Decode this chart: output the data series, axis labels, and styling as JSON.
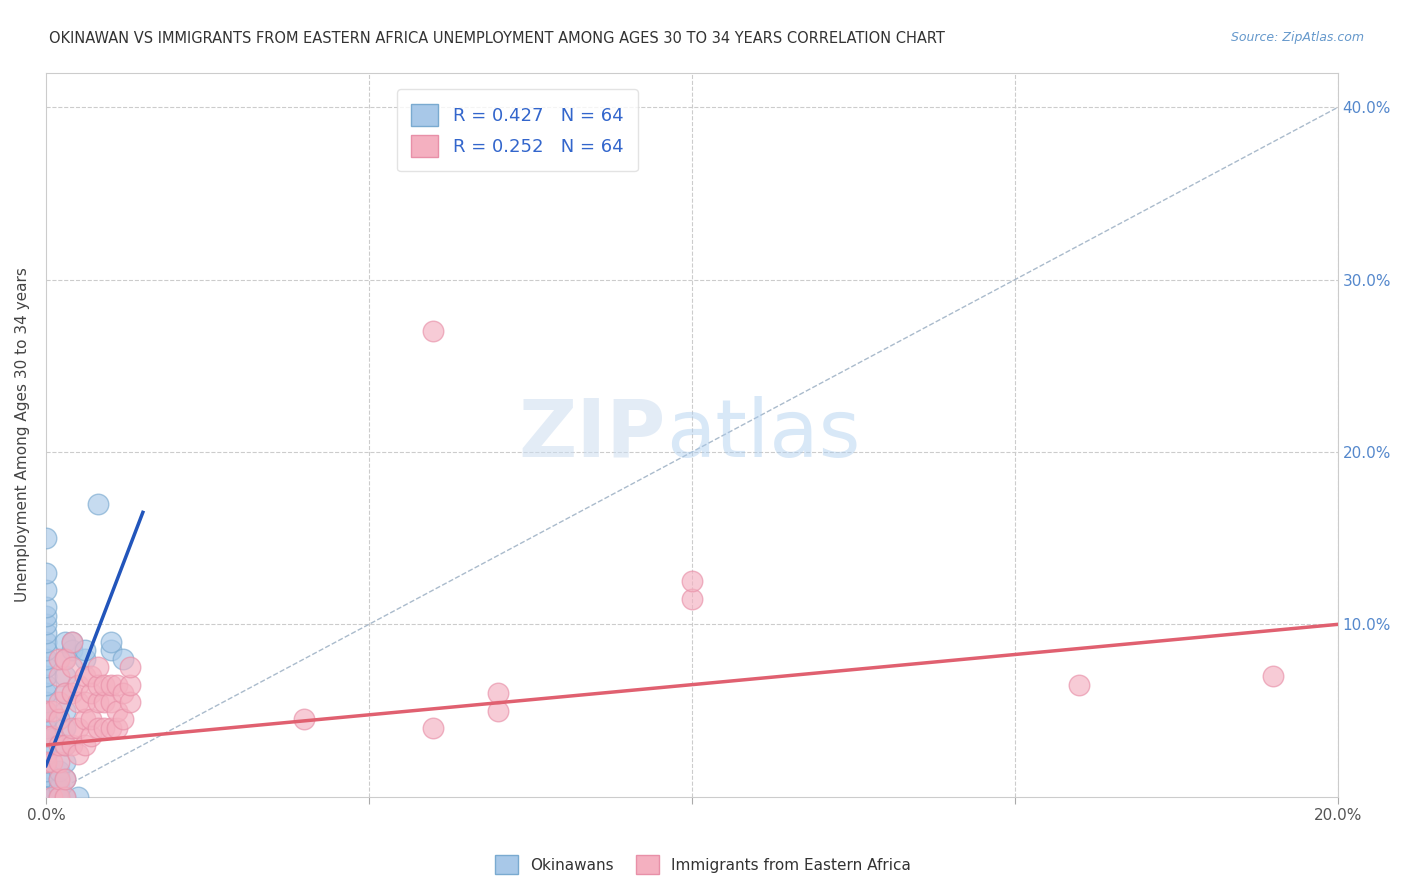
{
  "title": "OKINAWAN VS IMMIGRANTS FROM EASTERN AFRICA UNEMPLOYMENT AMONG AGES 30 TO 34 YEARS CORRELATION CHART",
  "source": "Source: ZipAtlas.com",
  "ylabel": "Unemployment Among Ages 30 to 34 years",
  "xlim": [
    0.0,
    0.2
  ],
  "ylim": [
    0.0,
    0.42
  ],
  "xticks": [
    0.0,
    0.05,
    0.1,
    0.15,
    0.2
  ],
  "yticks": [
    0.0,
    0.1,
    0.2,
    0.3,
    0.4
  ],
  "xticklabels": [
    "0.0%",
    "",
    "",
    "",
    "20.0%"
  ],
  "yticklabels": [
    "",
    "10.0%",
    "20.0%",
    "30.0%",
    "40.0%"
  ],
  "legend1_label": "R = 0.427   N = 64",
  "legend2_label": "R = 0.252   N = 64",
  "blue_color": "#a8c8e8",
  "pink_color": "#f4b0c0",
  "blue_edge_color": "#7aaad0",
  "pink_edge_color": "#e890a8",
  "blue_line_color": "#2255bb",
  "pink_line_color": "#e06070",
  "ref_line_color": "#aabbcc",
  "blue_scatter": [
    [
      0.0,
      0.0
    ],
    [
      0.0,
      0.0
    ],
    [
      0.0,
      0.0
    ],
    [
      0.0,
      0.0
    ],
    [
      0.0,
      0.0
    ],
    [
      0.0,
      0.0
    ],
    [
      0.0,
      0.0
    ],
    [
      0.0,
      0.0
    ],
    [
      0.0,
      0.0
    ],
    [
      0.0,
      0.0
    ],
    [
      0.0,
      0.005
    ],
    [
      0.0,
      0.01
    ],
    [
      0.0,
      0.01
    ],
    [
      0.0,
      0.015
    ],
    [
      0.0,
      0.02
    ],
    [
      0.0,
      0.02
    ],
    [
      0.0,
      0.025
    ],
    [
      0.0,
      0.03
    ],
    [
      0.0,
      0.035
    ],
    [
      0.0,
      0.04
    ],
    [
      0.0,
      0.045
    ],
    [
      0.0,
      0.05
    ],
    [
      0.0,
      0.055
    ],
    [
      0.0,
      0.06
    ],
    [
      0.0,
      0.065
    ],
    [
      0.0,
      0.07
    ],
    [
      0.0,
      0.075
    ],
    [
      0.0,
      0.08
    ],
    [
      0.0,
      0.085
    ],
    [
      0.0,
      0.09
    ],
    [
      0.0,
      0.095
    ],
    [
      0.0,
      0.1
    ],
    [
      0.0,
      0.105
    ],
    [
      0.0,
      0.11
    ],
    [
      0.0,
      0.12
    ],
    [
      0.0,
      0.13
    ],
    [
      0.0,
      0.15
    ],
    [
      0.0,
      0.0
    ],
    [
      0.0,
      0.0
    ],
    [
      0.0,
      0.0
    ],
    [
      0.002,
      0.0
    ],
    [
      0.002,
      0.005
    ],
    [
      0.002,
      0.01
    ],
    [
      0.002,
      0.015
    ],
    [
      0.002,
      0.0
    ],
    [
      0.003,
      0.0
    ],
    [
      0.003,
      0.01
    ],
    [
      0.003,
      0.02
    ],
    [
      0.003,
      0.03
    ],
    [
      0.003,
      0.04
    ],
    [
      0.003,
      0.05
    ],
    [
      0.003,
      0.06
    ],
    [
      0.003,
      0.07
    ],
    [
      0.003,
      0.08
    ],
    [
      0.003,
      0.09
    ],
    [
      0.004,
      0.085
    ],
    [
      0.004,
      0.09
    ],
    [
      0.005,
      0.0
    ],
    [
      0.006,
      0.08
    ],
    [
      0.006,
      0.085
    ],
    [
      0.008,
      0.17
    ],
    [
      0.01,
      0.085
    ],
    [
      0.01,
      0.09
    ],
    [
      0.012,
      0.08
    ]
  ],
  "pink_scatter": [
    [
      0.0,
      0.02
    ],
    [
      0.0,
      0.035
    ],
    [
      0.0,
      0.05
    ],
    [
      0.001,
      0.0
    ],
    [
      0.001,
      0.02
    ],
    [
      0.001,
      0.035
    ],
    [
      0.001,
      0.05
    ],
    [
      0.002,
      0.0
    ],
    [
      0.002,
      0.01
    ],
    [
      0.002,
      0.02
    ],
    [
      0.002,
      0.03
    ],
    [
      0.002,
      0.045
    ],
    [
      0.002,
      0.055
    ],
    [
      0.002,
      0.07
    ],
    [
      0.002,
      0.08
    ],
    [
      0.003,
      0.0
    ],
    [
      0.003,
      0.01
    ],
    [
      0.003,
      0.03
    ],
    [
      0.003,
      0.06
    ],
    [
      0.003,
      0.08
    ],
    [
      0.004,
      0.03
    ],
    [
      0.004,
      0.04
    ],
    [
      0.004,
      0.06
    ],
    [
      0.004,
      0.075
    ],
    [
      0.004,
      0.09
    ],
    [
      0.005,
      0.025
    ],
    [
      0.005,
      0.04
    ],
    [
      0.005,
      0.055
    ],
    [
      0.005,
      0.065
    ],
    [
      0.006,
      0.03
    ],
    [
      0.006,
      0.045
    ],
    [
      0.006,
      0.055
    ],
    [
      0.006,
      0.07
    ],
    [
      0.007,
      0.035
    ],
    [
      0.007,
      0.045
    ],
    [
      0.007,
      0.06
    ],
    [
      0.007,
      0.07
    ],
    [
      0.008,
      0.04
    ],
    [
      0.008,
      0.055
    ],
    [
      0.008,
      0.065
    ],
    [
      0.008,
      0.075
    ],
    [
      0.009,
      0.04
    ],
    [
      0.009,
      0.055
    ],
    [
      0.009,
      0.065
    ],
    [
      0.01,
      0.04
    ],
    [
      0.01,
      0.055
    ],
    [
      0.01,
      0.065
    ],
    [
      0.011,
      0.04
    ],
    [
      0.011,
      0.05
    ],
    [
      0.011,
      0.065
    ],
    [
      0.012,
      0.045
    ],
    [
      0.012,
      0.06
    ],
    [
      0.013,
      0.055
    ],
    [
      0.013,
      0.065
    ],
    [
      0.013,
      0.075
    ],
    [
      0.04,
      0.045
    ],
    [
      0.06,
      0.04
    ],
    [
      0.07,
      0.05
    ],
    [
      0.07,
      0.06
    ],
    [
      0.06,
      0.27
    ],
    [
      0.1,
      0.115
    ],
    [
      0.1,
      0.125
    ],
    [
      0.16,
      0.065
    ],
    [
      0.19,
      0.07
    ]
  ],
  "blue_regline_x": [
    0.0,
    0.015
  ],
  "blue_regline_y": [
    0.018,
    0.165
  ],
  "pink_regline_x": [
    0.0,
    0.2
  ],
  "pink_regline_y": [
    0.03,
    0.1
  ]
}
